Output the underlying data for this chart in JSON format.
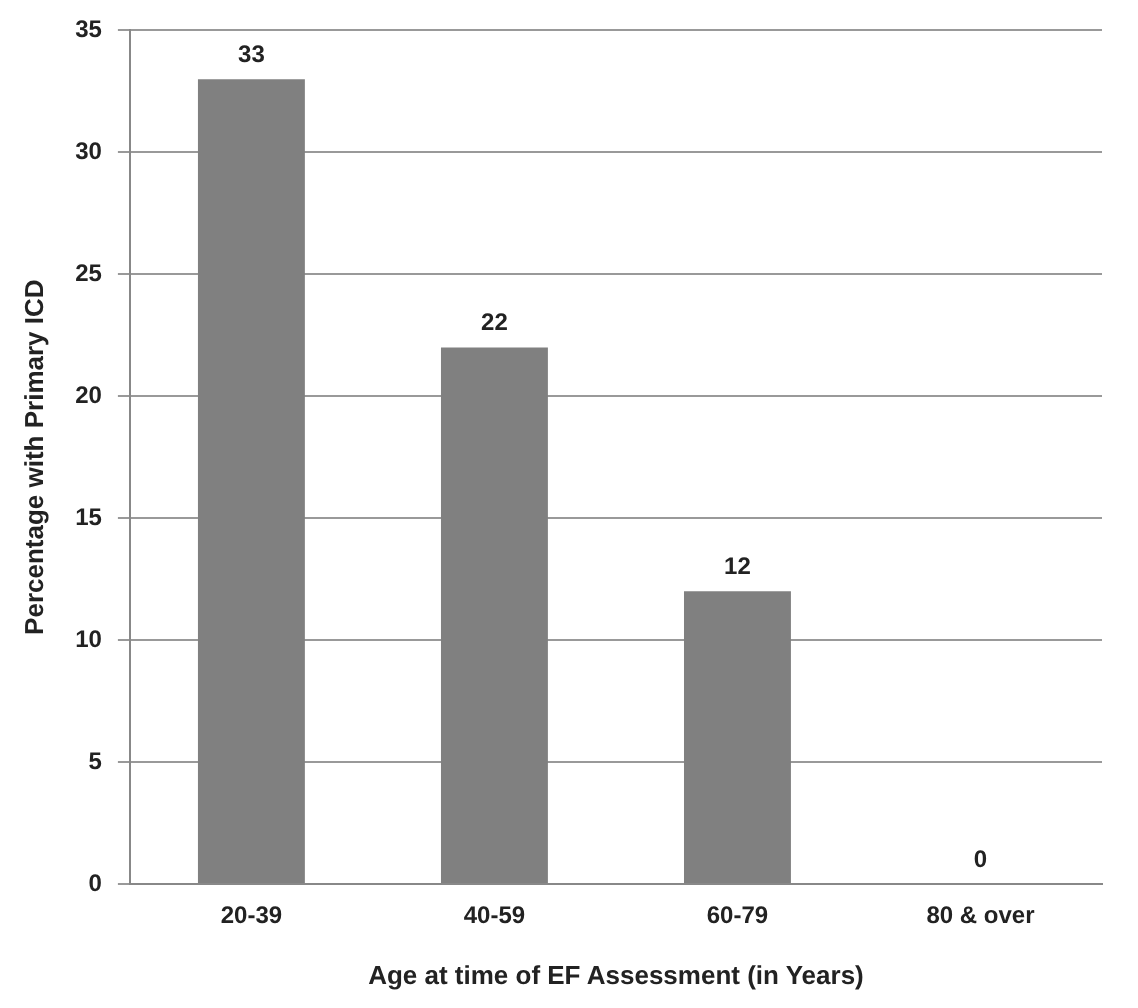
{
  "chart_data": {
    "type": "bar",
    "xlabel": "Age at time of EF Assessment (in Years)",
    "ylabel": "Percentage with Primary ICD",
    "categories": [
      "20-39",
      "40-59",
      "60-79",
      "80 & over"
    ],
    "values": [
      33,
      22,
      12,
      0
    ],
    "color": "#808080",
    "ylim": [
      0,
      35
    ],
    "yticks": [
      0,
      5,
      10,
      15,
      20,
      25,
      30,
      35
    ],
    "grid": "y",
    "data_labels": true,
    "legend": false
  }
}
